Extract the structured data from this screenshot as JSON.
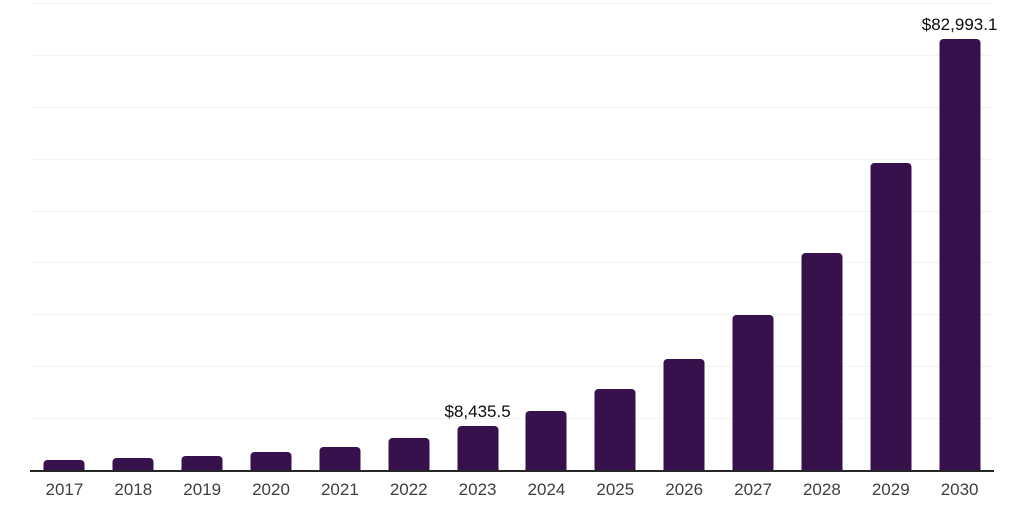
{
  "chart_data": {
    "type": "bar",
    "title": "",
    "xlabel": "",
    "ylabel": "",
    "categories": [
      "2017",
      "2018",
      "2019",
      "2020",
      "2021",
      "2022",
      "2023",
      "2024",
      "2025",
      "2026",
      "2027",
      "2028",
      "2029",
      "2030"
    ],
    "values": [
      2000,
      2400,
      2700,
      3400,
      4500,
      6200,
      8435.5,
      11300,
      15600,
      21400,
      29800,
      41800,
      59100,
      82993.1
    ],
    "value_labels": [
      "",
      "",
      "",
      "",
      "",
      "",
      "$8,435.5",
      "",
      "",
      "",
      "",
      "",
      "",
      "$82,993.1"
    ],
    "ylim": [
      0,
      90000
    ],
    "gridline_step": 10000,
    "grid": "horizontal",
    "legend": "none",
    "y_axis_tick_labels_visible": false
  },
  "colors": {
    "bar": "#36114C",
    "axis_line": "#262626",
    "gridline": "#f3f3f3",
    "x_label": "#3f3f3f",
    "value_label": "#0d0d0d",
    "background": "#ffffff"
  }
}
